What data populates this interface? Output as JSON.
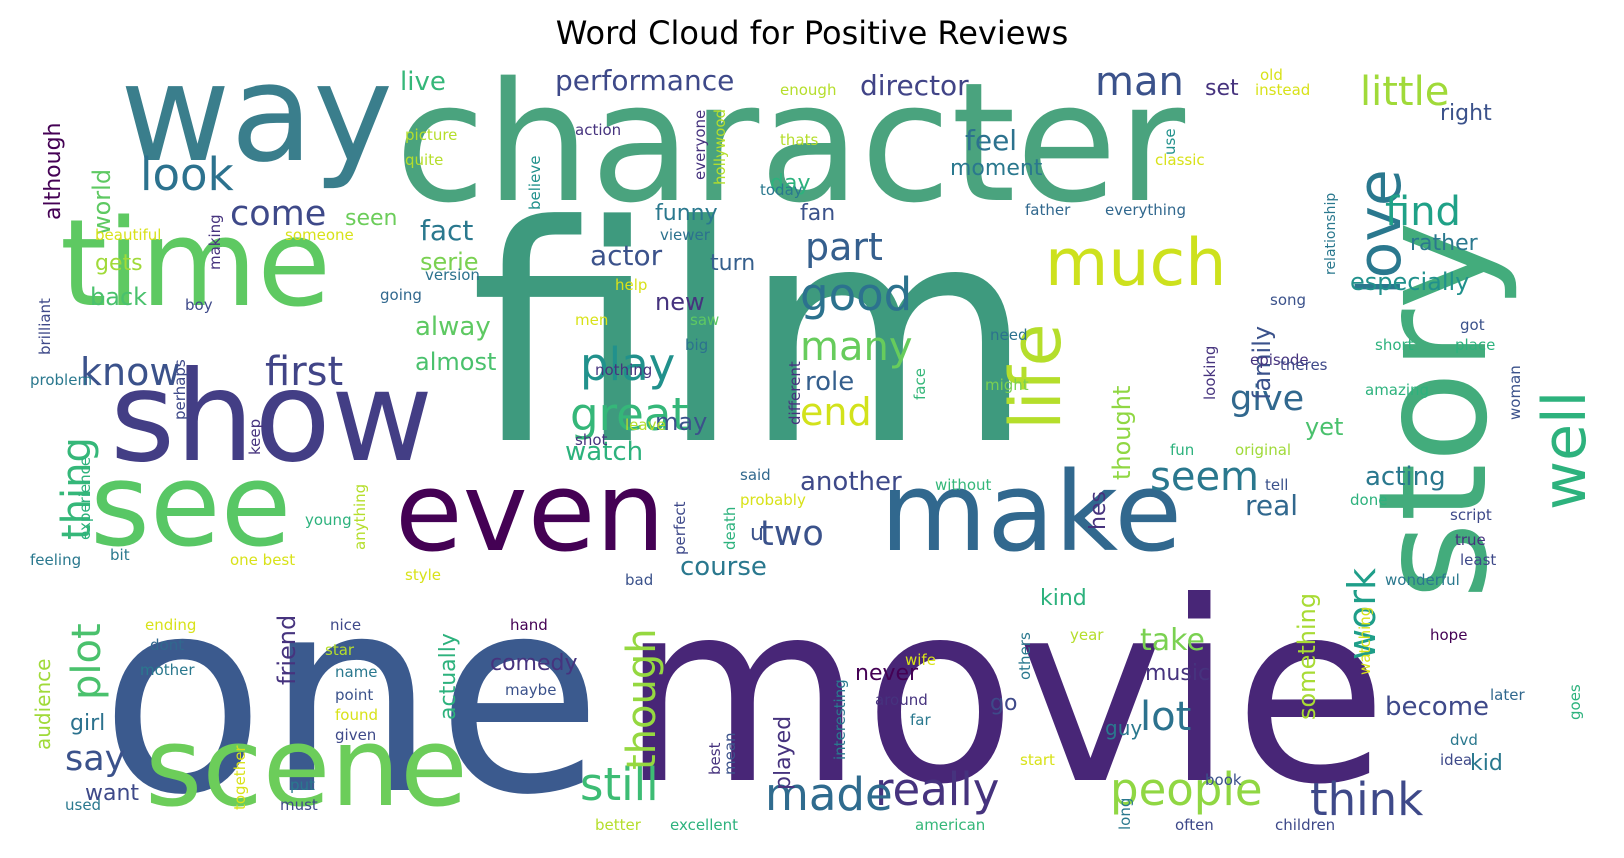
{
  "chart_data": {
    "type": "word_cloud",
    "title": "Word Cloud for Positive Reviews",
    "colors": {
      "viridis_dark": "#440154",
      "viridis_indigo": "#3b528b",
      "viridis_blue": "#31688e",
      "viridis_teal": "#21918c",
      "viridis_green": "#35b779",
      "viridis_lime": "#90d743",
      "viridis_yellow": "#d8e219"
    },
    "words": [
      {
        "text": "film",
        "weight": 1.0,
        "color": "#3e9a7e"
      },
      {
        "text": "one",
        "weight": 0.88,
        "color": "#3b5a8e"
      },
      {
        "text": "movie",
        "weight": 0.84,
        "color": "#482677"
      },
      {
        "text": "character",
        "weight": 0.66,
        "color": "#4aa37e"
      },
      {
        "text": "story",
        "weight": 0.6,
        "color": "#43ac7c"
      },
      {
        "text": "way",
        "weight": 0.52,
        "color": "#3a7e8c"
      },
      {
        "text": "time",
        "weight": 0.5,
        "color": "#5ec962"
      },
      {
        "text": "show",
        "weight": 0.48,
        "color": "#433e85"
      },
      {
        "text": "see",
        "weight": 0.47,
        "color": "#58c765"
      },
      {
        "text": "make",
        "weight": 0.46,
        "color": "#31688e"
      },
      {
        "text": "even",
        "weight": 0.46,
        "color": "#440154"
      },
      {
        "text": "scene",
        "weight": 0.45,
        "color": "#6ccd5a"
      },
      {
        "text": "life",
        "weight": 0.3,
        "color": "#b5de2b"
      },
      {
        "text": "much",
        "weight": 0.28,
        "color": "#cde11d"
      },
      {
        "text": "love",
        "weight": 0.28,
        "color": "#2a788e"
      },
      {
        "text": "well",
        "weight": 0.26,
        "color": "#2db27d"
      },
      {
        "text": "people",
        "weight": 0.18,
        "color": "#90d743"
      },
      {
        "text": "really",
        "weight": 0.18,
        "color": "#46337e"
      },
      {
        "text": "still",
        "weight": 0.18,
        "color": "#3dbc74"
      },
      {
        "text": "great",
        "weight": 0.18,
        "color": "#35b779"
      },
      {
        "text": "think",
        "weight": 0.16,
        "color": "#3e4989"
      },
      {
        "text": "made",
        "weight": 0.16,
        "color": "#2f6b8e"
      },
      {
        "text": "good",
        "weight": 0.16,
        "color": "#2c728e"
      },
      {
        "text": "play",
        "weight": 0.15,
        "color": "#21918c"
      },
      {
        "text": "look",
        "weight": 0.14,
        "color": "#2c728e"
      },
      {
        "text": "seem",
        "weight": 0.13,
        "color": "#2a788e"
      },
      {
        "text": "first",
        "weight": 0.13,
        "color": "#414487"
      },
      {
        "text": "man",
        "weight": 0.13,
        "color": "#3b528b"
      },
      {
        "text": "little",
        "weight": 0.13,
        "color": "#a0da39"
      },
      {
        "text": "find",
        "weight": 0.13,
        "color": "#1fa187"
      },
      {
        "text": "lot",
        "weight": 0.13,
        "color": "#2c728e"
      },
      {
        "text": "many",
        "weight": 0.13,
        "color": "#67cc5c"
      },
      {
        "text": "know",
        "weight": 0.12,
        "color": "#3b528b"
      },
      {
        "text": "thing",
        "weight": 0.12,
        "color": "#35b779"
      },
      {
        "text": "plot",
        "weight": 0.12,
        "color": "#4ac16d"
      },
      {
        "text": "come",
        "weight": 0.11,
        "color": "#3e4989"
      },
      {
        "text": "part",
        "weight": 0.11,
        "color": "#355f8d"
      },
      {
        "text": "end",
        "weight": 0.11,
        "color": "#d2e21b"
      },
      {
        "text": "give",
        "weight": 0.11,
        "color": "#31688e"
      },
      {
        "text": "two",
        "weight": 0.11,
        "color": "#3b528b"
      },
      {
        "text": "work",
        "weight": 0.11,
        "color": "#1f9e89"
      },
      {
        "text": "though",
        "weight": 0.11,
        "color": "#95d840"
      },
      {
        "text": "say",
        "weight": 0.1,
        "color": "#3b528b"
      },
      {
        "text": "take",
        "weight": 0.09,
        "color": "#7ad151"
      },
      {
        "text": "performance",
        "weight": 0.08,
        "color": "#3e4989"
      },
      {
        "text": "director",
        "weight": 0.08,
        "color": "#414487"
      },
      {
        "text": "feel",
        "weight": 0.08,
        "color": "#2c728e"
      },
      {
        "text": "fact",
        "weight": 0.08,
        "color": "#2a788e"
      },
      {
        "text": "actor",
        "weight": 0.08,
        "color": "#3b528b"
      },
      {
        "text": "role",
        "weight": 0.08,
        "color": "#355f8d"
      },
      {
        "text": "watch",
        "weight": 0.08,
        "color": "#2db27d"
      },
      {
        "text": "another",
        "weight": 0.08,
        "color": "#3e4989"
      },
      {
        "text": "course",
        "weight": 0.08,
        "color": "#2a788e"
      },
      {
        "text": "acting",
        "weight": 0.08,
        "color": "#2a788e"
      },
      {
        "text": "become",
        "weight": 0.08,
        "color": "#3e4989"
      },
      {
        "text": "comedy",
        "weight": 0.07,
        "color": "#46337e"
      },
      {
        "text": "music",
        "weight": 0.07,
        "color": "#46337e"
      },
      {
        "text": "never",
        "weight": 0.07,
        "color": "#440154"
      },
      {
        "text": "real",
        "weight": 0.07,
        "color": "#31688e"
      },
      {
        "text": "something",
        "weight": 0.07,
        "color": "#a8db34"
      },
      {
        "text": "thought",
        "weight": 0.07,
        "color": "#90d743"
      },
      {
        "text": "especially",
        "weight": 0.06,
        "color": "#21918c"
      },
      {
        "text": "rather",
        "weight": 0.06,
        "color": "#2a788e"
      },
      {
        "text": "world",
        "weight": 0.06,
        "color": "#5ec962"
      },
      {
        "text": "although",
        "weight": 0.06,
        "color": "#440154"
      },
      {
        "text": "live",
        "weight": 0.06,
        "color": "#35b779"
      },
      {
        "text": "alway",
        "weight": 0.06,
        "color": "#5ec962"
      },
      {
        "text": "almost",
        "weight": 0.06,
        "color": "#4ac16d"
      },
      {
        "text": "new",
        "weight": 0.06,
        "color": "#46337e"
      },
      {
        "text": "may",
        "weight": 0.06,
        "color": "#3b528b"
      },
      {
        "text": "yet",
        "weight": 0.06,
        "color": "#4ac16d"
      },
      {
        "text": "day",
        "weight": 0.06,
        "color": "#2db27d"
      },
      {
        "text": "moment",
        "weight": 0.06,
        "color": "#2a788e"
      },
      {
        "text": "funny",
        "weight": 0.06,
        "color": "#2a788e"
      },
      {
        "text": "turn",
        "weight": 0.06,
        "color": "#355f8d"
      },
      {
        "text": "fan",
        "weight": 0.06,
        "color": "#3b528b"
      },
      {
        "text": "serie",
        "weight": 0.06,
        "color": "#7ad151"
      },
      {
        "text": "set",
        "weight": 0.06,
        "color": "#46337e"
      },
      {
        "text": "kind",
        "weight": 0.06,
        "color": "#2db27d"
      },
      {
        "text": "go",
        "weight": 0.06,
        "color": "#3e4989"
      },
      {
        "text": "guy",
        "weight": 0.06,
        "color": "#2a788e"
      },
      {
        "text": "friend",
        "weight": 0.06,
        "color": "#46337e"
      },
      {
        "text": "actually",
        "weight": 0.06,
        "color": "#2db27d"
      },
      {
        "text": "played",
        "weight": 0.06,
        "color": "#46337e"
      },
      {
        "text": "audience",
        "weight": 0.06,
        "color": "#a0da39"
      },
      {
        "text": "girl",
        "weight": 0.06,
        "color": "#2c728e"
      },
      {
        "text": "want",
        "weight": 0.06,
        "color": "#3e4989"
      },
      {
        "text": "back",
        "weight": 0.06,
        "color": "#4ac16d"
      },
      {
        "text": "hes",
        "weight": 0.06,
        "color": "#46337e"
      },
      {
        "text": "family",
        "weight": 0.06,
        "color": "#3b528b"
      },
      {
        "text": "kid",
        "weight": 0.06,
        "color": "#2a788e"
      },
      {
        "text": "right",
        "weight": 0.05,
        "color": "#3b528b"
      },
      {
        "text": "seen",
        "weight": 0.05,
        "color": "#6ccd5a"
      },
      {
        "text": "gets",
        "weight": 0.05,
        "color": "#a0da39"
      },
      {
        "text": "episode",
        "weight": 0.04,
        "color": "#46337e"
      },
      {
        "text": "picture",
        "weight": 0.04,
        "color": "#b5de2b"
      },
      {
        "text": "quite",
        "weight": 0.04,
        "color": "#b5de2b"
      },
      {
        "text": "action",
        "weight": 0.04,
        "color": "#46337e"
      },
      {
        "text": "enough",
        "weight": 0.04,
        "color": "#b5de2b"
      },
      {
        "text": "old",
        "weight": 0.04,
        "color": "#d8e219"
      },
      {
        "text": "instead",
        "weight": 0.04,
        "color": "#d8e219"
      },
      {
        "text": "thats",
        "weight": 0.04,
        "color": "#b5de2b"
      },
      {
        "text": "classic",
        "weight": 0.04,
        "color": "#d8e219"
      },
      {
        "text": "today",
        "weight": 0.04,
        "color": "#2a788e"
      },
      {
        "text": "everyone",
        "weight": 0.04,
        "color": "#46337e"
      },
      {
        "text": "hollywood",
        "weight": 0.04,
        "color": "#b5de2b"
      },
      {
        "text": "believe",
        "weight": 0.04,
        "color": "#21918c"
      },
      {
        "text": "use",
        "weight": 0.04,
        "color": "#21918c"
      },
      {
        "text": "relationship",
        "weight": 0.04,
        "color": "#2a788e"
      },
      {
        "text": "father",
        "weight": 0.04,
        "color": "#31688e"
      },
      {
        "text": "everything",
        "weight": 0.04,
        "color": "#31688e"
      },
      {
        "text": "beautiful",
        "weight": 0.04,
        "color": "#d8e219"
      },
      {
        "text": "someone",
        "weight": 0.04,
        "color": "#d8e219"
      },
      {
        "text": "making",
        "weight": 0.04,
        "color": "#46337e"
      },
      {
        "text": "version",
        "weight": 0.04,
        "color": "#2c728e"
      },
      {
        "text": "viewer",
        "weight": 0.04,
        "color": "#2c728e"
      },
      {
        "text": "help",
        "weight": 0.04,
        "color": "#d8e219"
      },
      {
        "text": "song",
        "weight": 0.04,
        "color": "#3b528b"
      },
      {
        "text": "boy",
        "weight": 0.04,
        "color": "#3e4989"
      },
      {
        "text": "going",
        "weight": 0.04,
        "color": "#31688e"
      },
      {
        "text": "brilliant",
        "weight": 0.04,
        "color": "#3e4989"
      },
      {
        "text": "men",
        "weight": 0.04,
        "color": "#d8e219"
      },
      {
        "text": "saw",
        "weight": 0.04,
        "color": "#5ec962"
      },
      {
        "text": "need",
        "weight": 0.04,
        "color": "#2c728e"
      },
      {
        "text": "got",
        "weight": 0.04,
        "color": "#3b528b"
      },
      {
        "text": "place",
        "weight": 0.04,
        "color": "#2db27d"
      },
      {
        "text": "big",
        "weight": 0.04,
        "color": "#2c728e"
      },
      {
        "text": "short",
        "weight": 0.04,
        "color": "#2db27d"
      },
      {
        "text": "theres",
        "weight": 0.04,
        "color": "#3e4989"
      },
      {
        "text": "problem",
        "weight": 0.04,
        "color": "#2a788e"
      },
      {
        "text": "perhaps",
        "weight": 0.04,
        "color": "#3e4989"
      },
      {
        "text": "nothing",
        "weight": 0.04,
        "color": "#46337e"
      },
      {
        "text": "different",
        "weight": 0.04,
        "color": "#46337e"
      },
      {
        "text": "might",
        "weight": 0.04,
        "color": "#7ad151"
      },
      {
        "text": "looking",
        "weight": 0.04,
        "color": "#46337e"
      },
      {
        "text": "amazing",
        "weight": 0.04,
        "color": "#2db27d"
      },
      {
        "text": "leave",
        "weight": 0.04,
        "color": "#b5de2b"
      },
      {
        "text": "face",
        "weight": 0.04,
        "color": "#35b779"
      },
      {
        "text": "woman",
        "weight": 0.04,
        "color": "#3b528b"
      },
      {
        "text": "keep",
        "weight": 0.04,
        "color": "#46337e"
      },
      {
        "text": "shot",
        "weight": 0.04,
        "color": "#46337e"
      },
      {
        "text": "fun",
        "weight": 0.04,
        "color": "#2db27d"
      },
      {
        "text": "original",
        "weight": 0.04,
        "color": "#a0da39"
      },
      {
        "text": "experience",
        "weight": 0.04,
        "color": "#2db27d"
      },
      {
        "text": "said",
        "weight": 0.04,
        "color": "#31688e"
      },
      {
        "text": "without",
        "weight": 0.04,
        "color": "#35b779"
      },
      {
        "text": "tell",
        "weight": 0.04,
        "color": "#3b528b"
      },
      {
        "text": "probably",
        "weight": 0.04,
        "color": "#d8e219"
      },
      {
        "text": "done",
        "weight": 0.04,
        "color": "#2db27d"
      },
      {
        "text": "script",
        "weight": 0.04,
        "color": "#3e4989"
      },
      {
        "text": "young",
        "weight": 0.04,
        "color": "#2db27d"
      },
      {
        "text": "anything",
        "weight": 0.04,
        "color": "#b5de2b"
      },
      {
        "text": "perfect",
        "weight": 0.04,
        "color": "#3e4989"
      },
      {
        "text": "death",
        "weight": 0.04,
        "color": "#2db27d"
      },
      {
        "text": "true",
        "weight": 0.04,
        "color": "#46337e"
      },
      {
        "text": "feeling",
        "weight": 0.04,
        "color": "#2a788e"
      },
      {
        "text": "bit",
        "weight": 0.04,
        "color": "#2a788e"
      },
      {
        "text": "one best",
        "weight": 0.04,
        "color": "#d8e219"
      },
      {
        "text": "least",
        "weight": 0.04,
        "color": "#3e4989"
      },
      {
        "text": "style",
        "weight": 0.04,
        "color": "#d8e219"
      },
      {
        "text": "bad",
        "weight": 0.04,
        "color": "#3b528b"
      },
      {
        "text": "wonderful",
        "weight": 0.04,
        "color": "#2a788e"
      },
      {
        "text": "ending",
        "weight": 0.04,
        "color": "#d8e219"
      },
      {
        "text": "nice",
        "weight": 0.04,
        "color": "#3e4989"
      },
      {
        "text": "hand",
        "weight": 0.04,
        "color": "#440154"
      },
      {
        "text": "others",
        "weight": 0.04,
        "color": "#2a788e"
      },
      {
        "text": "year",
        "weight": 0.04,
        "color": "#b5de2b"
      },
      {
        "text": "hope",
        "weight": 0.04,
        "color": "#440154"
      },
      {
        "text": "dont",
        "weight": 0.04,
        "color": "#31688e"
      },
      {
        "text": "star",
        "weight": 0.04,
        "color": "#b5de2b"
      },
      {
        "text": "mother",
        "weight": 0.04,
        "color": "#2a788e"
      },
      {
        "text": "name",
        "weight": 0.04,
        "color": "#2a788e"
      },
      {
        "text": "wife",
        "weight": 0.04,
        "color": "#d8e219"
      },
      {
        "text": "watching",
        "weight": 0.04,
        "color": "#d8e219"
      },
      {
        "text": "goes",
        "weight": 0.04,
        "color": "#2db27d"
      },
      {
        "text": "maybe",
        "weight": 0.04,
        "color": "#3b528b"
      },
      {
        "text": "point",
        "weight": 0.04,
        "color": "#3b528b"
      },
      {
        "text": "around",
        "weight": 0.04,
        "color": "#46337e"
      },
      {
        "text": "interesting",
        "weight": 0.04,
        "color": "#2a788e"
      },
      {
        "text": "later",
        "weight": 0.04,
        "color": "#31688e"
      },
      {
        "text": "found",
        "weight": 0.04,
        "color": "#d8e219"
      },
      {
        "text": "far",
        "weight": 0.04,
        "color": "#2a788e"
      },
      {
        "text": "best",
        "weight": 0.04,
        "color": "#46337e"
      },
      {
        "text": "mean",
        "weight": 0.04,
        "color": "#3b528b"
      },
      {
        "text": "given",
        "weight": 0.04,
        "color": "#3e4989"
      },
      {
        "text": "dvd",
        "weight": 0.04,
        "color": "#2a788e"
      },
      {
        "text": "idea",
        "weight": 0.04,
        "color": "#3e4989"
      },
      {
        "text": "start",
        "weight": 0.04,
        "color": "#d8e219"
      },
      {
        "text": "together",
        "weight": 0.04,
        "color": "#d8e219"
      },
      {
        "text": "put",
        "weight": 0.04,
        "color": "#2a788e"
      },
      {
        "text": "book",
        "weight": 0.04,
        "color": "#3b528b"
      },
      {
        "text": "used",
        "weight": 0.04,
        "color": "#2a788e"
      },
      {
        "text": "must",
        "weight": 0.04,
        "color": "#3e4989"
      },
      {
        "text": "long",
        "weight": 0.04,
        "color": "#2a788e"
      },
      {
        "text": "better",
        "weight": 0.04,
        "color": "#b5de2b"
      },
      {
        "text": "excellent",
        "weight": 0.04,
        "color": "#2db27d"
      },
      {
        "text": "american",
        "weight": 0.04,
        "color": "#35b779"
      },
      {
        "text": "often",
        "weight": 0.04,
        "color": "#3e4989"
      },
      {
        "text": "children",
        "weight": 0.04,
        "color": "#3e4989"
      },
      {
        "text": "u",
        "weight": 0.06,
        "color": "#3b528b"
      }
    ]
  }
}
